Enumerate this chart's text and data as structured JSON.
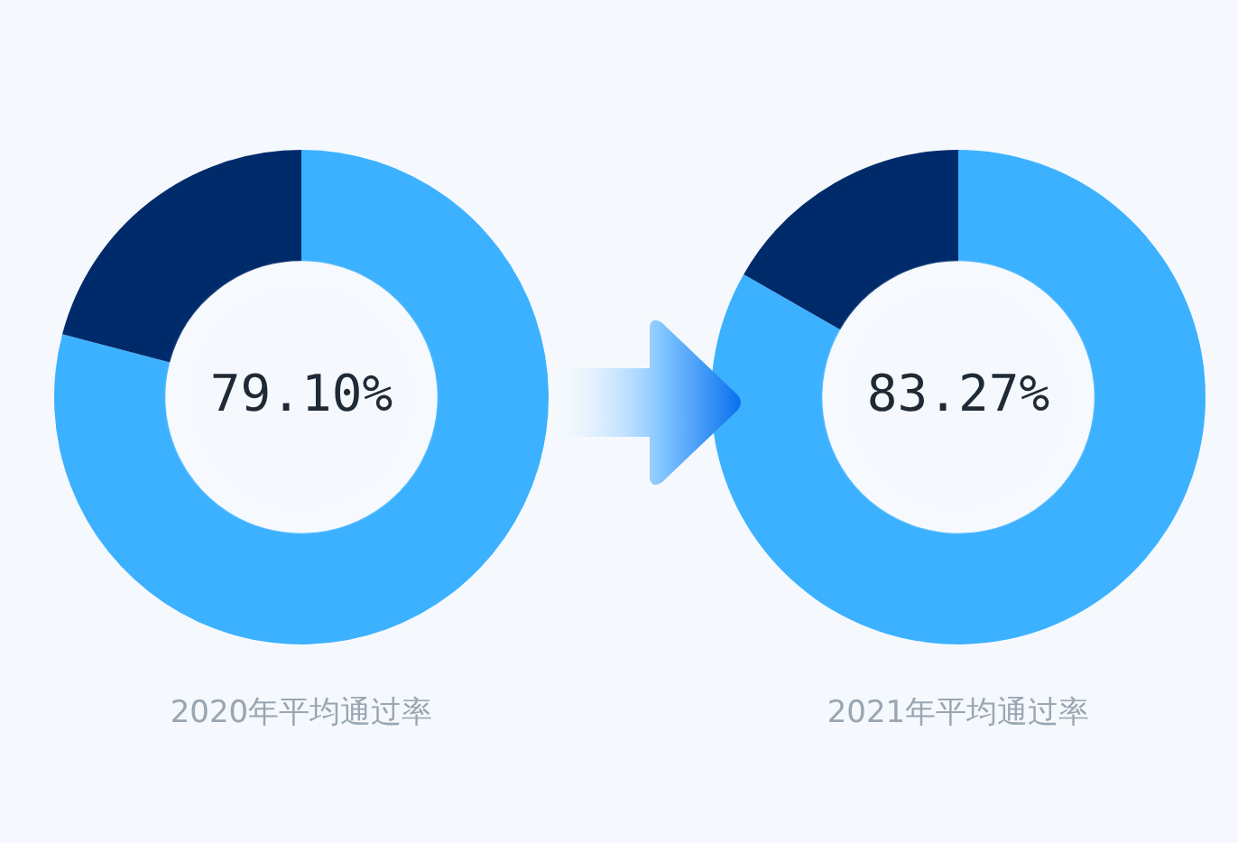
{
  "chart_data": [
    {
      "type": "donut",
      "title": "2020年平均通过率",
      "categories": [
        null,
        null
      ],
      "values": [
        79.1,
        20.9
      ],
      "colors": [
        "#3cb1ff",
        "#002b6b"
      ],
      "value_labels": [
        "79.10%",
        null
      ],
      "legend": false
    },
    {
      "type": "donut",
      "title": "2021年平均通过率",
      "categories": [
        null,
        null
      ],
      "values": [
        83.27,
        16.73
      ],
      "colors": [
        "#3cb1ff",
        "#002b6b"
      ],
      "value_labels": [
        "83.27%",
        null
      ],
      "legend": false
    }
  ]
}
